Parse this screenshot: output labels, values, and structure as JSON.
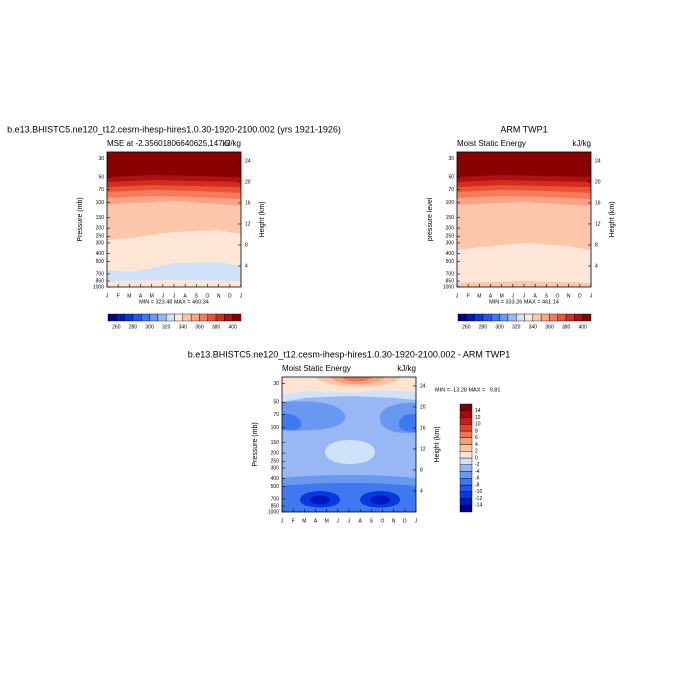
{
  "chart_data": [
    {
      "type": "contour",
      "title": "b.e13.BHISTC5.ne120_t12.cesm-ihesp-hires1.0.30-1920-2100.002 (yrs 1921-1926)",
      "subtitle": "MSE at -2.35601806640625,147.5",
      "units": "kJ/kg",
      "ylabel": "Pressure (mb)",
      "y2label": "Height (km)",
      "categories": [
        "J",
        "F",
        "M",
        "A",
        "M",
        "J",
        "J",
        "A",
        "S",
        "O",
        "N",
        "D",
        "J"
      ],
      "yscale": "log",
      "ylim": [
        1000,
        25
      ],
      "yticks": [
        30,
        50,
        70,
        100,
        150,
        200,
        250,
        300,
        400,
        500,
        700,
        850,
        1000
      ],
      "y2lim": [
        0,
        25.7
      ],
      "y2ticks": [
        4,
        8,
        12,
        16,
        20,
        24
      ],
      "stats": "MIN = 323.48 MAX = 460.34",
      "colorbar": {
        "orientation": "horizontal",
        "levels": [
          260,
          270,
          280,
          290,
          300,
          310,
          320,
          330,
          340,
          350,
          360,
          370,
          380,
          390,
          400
        ],
        "ticks": [
          260,
          280,
          300,
          320,
          340,
          360,
          380,
          400
        ],
        "colors": [
          "#00008c",
          "#0018c0",
          "#0838e0",
          "#2058f0",
          "#4078f0",
          "#6898f0",
          "#98b8f5",
          "#cfe2fa",
          "#fde6d6",
          "#fcc6aa",
          "#f9a484",
          "#f47c5c",
          "#e8543a",
          "#d42c1c",
          "#b01010",
          "#880000"
        ]
      }
    },
    {
      "type": "contour",
      "title": "ARM TWP1",
      "subtitle": "Moist Static Energy",
      "units": "kJ/kg",
      "ylabel": "pressure level",
      "y2label": "Height (km)",
      "categories": [
        "J",
        "F",
        "M",
        "A",
        "M",
        "J",
        "J",
        "A",
        "S",
        "O",
        "N",
        "D",
        "J"
      ],
      "yscale": "log",
      "ylim": [
        1000,
        25
      ],
      "yticks": [
        30,
        50,
        70,
        100,
        150,
        200,
        250,
        300,
        400,
        500,
        700,
        850,
        1000
      ],
      "y2lim": [
        0,
        25.7
      ],
      "y2ticks": [
        4,
        8,
        12,
        16,
        20,
        24
      ],
      "stats": "MIN = 333.26 MAX = 461.14",
      "colorbar": {
        "orientation": "horizontal",
        "levels": [
          260,
          270,
          280,
          290,
          300,
          310,
          320,
          330,
          340,
          350,
          360,
          370,
          380,
          390,
          400
        ],
        "ticks": [
          260,
          280,
          300,
          320,
          340,
          360,
          380,
          400
        ],
        "colors": [
          "#00008c",
          "#0018c0",
          "#0838e0",
          "#2058f0",
          "#4078f0",
          "#6898f0",
          "#98b8f5",
          "#cfe2fa",
          "#fde6d6",
          "#fcc6aa",
          "#f9a484",
          "#f47c5c",
          "#e8543a",
          "#d42c1c",
          "#b01010",
          "#880000"
        ]
      }
    },
    {
      "type": "contour",
      "title": "b.e13.BHISTC5.ne120_t12.cesm-ihesp-hires1.0.30-1920-2100.002 - ARM TWP1",
      "subtitle": "Moist Static Energy",
      "units": "kJ/kg",
      "ylabel": "Pressure (mb)",
      "y2label": "Height (km)",
      "categories": [
        "J",
        "F",
        "M",
        "A",
        "M",
        "J",
        "J",
        "A",
        "S",
        "O",
        "N",
        "D",
        "J"
      ],
      "yscale": "log",
      "ylim": [
        1000,
        25
      ],
      "yticks": [
        30,
        50,
        70,
        100,
        150,
        200,
        250,
        300,
        400,
        500,
        700,
        850,
        1000
      ],
      "y2lim": [
        0,
        25.7
      ],
      "y2ticks": [
        4,
        8,
        12,
        16,
        20,
        24
      ],
      "stats": "MIN = -13.28 MAX =   9.81",
      "colorbar": {
        "orientation": "vertical",
        "levels": [
          -14,
          -12,
          -10,
          -8,
          -6,
          -4,
          -2,
          0,
          2,
          4,
          6,
          8,
          10,
          12,
          14
        ],
        "ticks": [
          -14,
          -12,
          -10,
          -8,
          -6,
          -4,
          -2,
          0,
          2,
          4,
          6,
          8,
          10,
          12,
          14
        ],
        "colors": [
          "#00008c",
          "#0018c0",
          "#0838e0",
          "#2058f0",
          "#4078f0",
          "#6898f0",
          "#98b8f5",
          "#cfe2fa",
          "#fde4d2",
          "#fcc4a6",
          "#f8a07c",
          "#f07450",
          "#e04430",
          "#c81c14",
          "#a80808",
          "#780000"
        ]
      }
    }
  ]
}
